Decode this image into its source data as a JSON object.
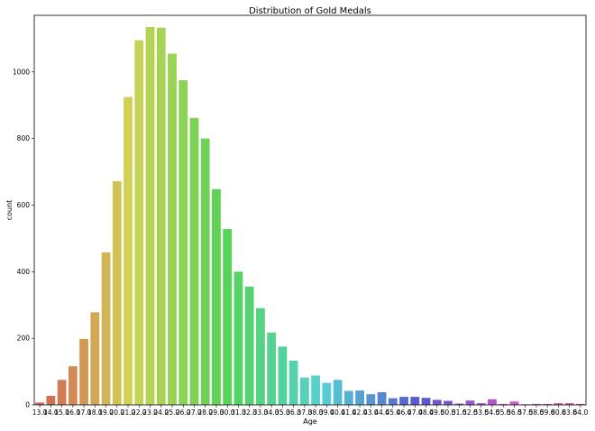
{
  "chart_data": {
    "type": "bar",
    "title": "Distribution of Gold Medals",
    "xlabel": "Age",
    "ylabel": "count",
    "ylim": [
      0,
      1170
    ],
    "yticks": [
      0,
      200,
      400,
      600,
      800,
      1000
    ],
    "categories": [
      "13.0",
      "14.0",
      "15.0",
      "16.0",
      "17.0",
      "18.0",
      "19.0",
      "20.0",
      "21.0",
      "22.0",
      "23.0",
      "24.0",
      "25.0",
      "26.0",
      "27.0",
      "28.0",
      "29.0",
      "30.0",
      "31.0",
      "32.0",
      "33.0",
      "34.0",
      "35.0",
      "36.0",
      "37.0",
      "38.0",
      "39.0",
      "40.0",
      "41.0",
      "42.0",
      "43.0",
      "44.0",
      "45.0",
      "46.0",
      "47.0",
      "48.0",
      "49.0",
      "50.0",
      "51.0",
      "52.0",
      "53.0",
      "54.0",
      "55.0",
      "56.0",
      "57.0",
      "58.0",
      "59.0",
      "60.0",
      "63.0",
      "64.0"
    ],
    "values": [
      7,
      27,
      75,
      116,
      198,
      278,
      458,
      672,
      925,
      1095,
      1135,
      1133,
      1055,
      975,
      862,
      800,
      648,
      528,
      400,
      355,
      290,
      217,
      175,
      133,
      82,
      88,
      66,
      75,
      42,
      43,
      32,
      38,
      20,
      24,
      24,
      21,
      15,
      12,
      4,
      13,
      5,
      17,
      3,
      10,
      2,
      3,
      3,
      5,
      5,
      3
    ],
    "grid": false,
    "legend": "none"
  }
}
